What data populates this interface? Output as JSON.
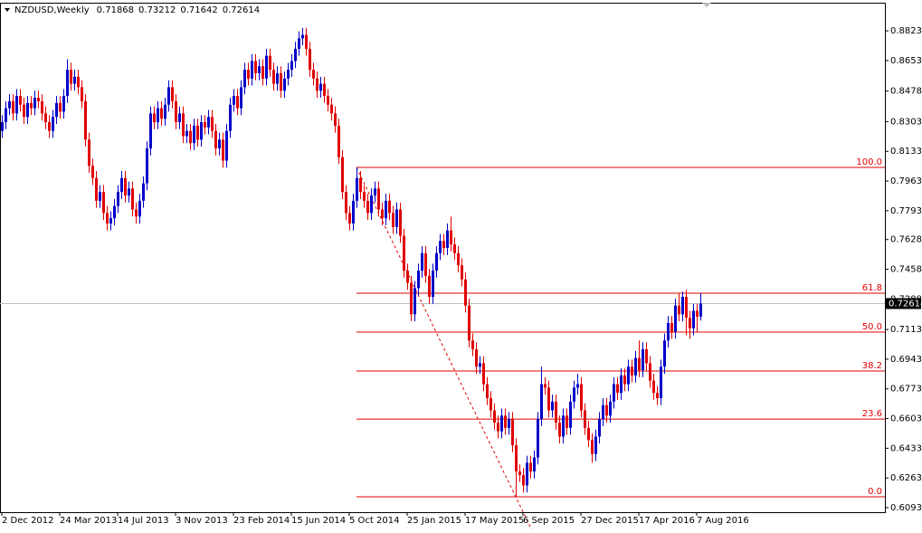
{
  "chart_data": {
    "type": "candlestick",
    "header": {
      "symbol": "NZDUSD,Weekly",
      "ohlc_labels": [
        "0.71868",
        "0.73212",
        "0.71642",
        "0.72614"
      ]
    },
    "up_color": "#0000c8",
    "down_color": "#e00000",
    "xlim": [
      -0.5,
      244
    ],
    "ylim": [
      0.6067,
      0.8984
    ],
    "xticks": [
      {
        "value": 0,
        "label": "2 Dec 2012"
      },
      {
        "value": 16,
        "label": "24 Mar 2013"
      },
      {
        "value": 32,
        "label": "14 Jul 2013"
      },
      {
        "value": 48,
        "label": "3 Nov 2013"
      },
      {
        "value": 64,
        "label": "23 Feb 2014"
      },
      {
        "value": 80,
        "label": "15 Jun 2014"
      },
      {
        "value": 96,
        "label": "5 Oct 2014"
      },
      {
        "value": 112,
        "label": "25 Jan 2015"
      },
      {
        "value": 128,
        "label": "17 May 2015"
      },
      {
        "value": 144,
        "label": "6 Sep 2015"
      },
      {
        "value": 160,
        "label": "27 Dec 2015"
      },
      {
        "value": 176,
        "label": "17 Apr 2016"
      },
      {
        "value": 192,
        "label": "7 Aug 2016"
      }
    ],
    "yticks": [
      {
        "value": 0.8823,
        "label": "0.88230"
      },
      {
        "value": 0.8653,
        "label": "0.86530"
      },
      {
        "value": 0.8478,
        "label": "0.84780"
      },
      {
        "value": 0.8303,
        "label": "0.83030"
      },
      {
        "value": 0.8133,
        "label": "0.81330"
      },
      {
        "value": 0.7963,
        "label": "0.79630"
      },
      {
        "value": 0.7793,
        "label": "0.77930"
      },
      {
        "value": 0.7628,
        "label": "0.76280"
      },
      {
        "value": 0.7458,
        "label": "0.74580"
      },
      {
        "value": 0.7288,
        "label": "0.72880"
      },
      {
        "value": 0.7113,
        "label": "0.71130"
      },
      {
        "value": 0.6943,
        "label": "0.69430"
      },
      {
        "value": 0.6773,
        "label": "0.67730"
      },
      {
        "value": 0.6603,
        "label": "0.66030"
      },
      {
        "value": 0.6433,
        "label": "0.64330"
      },
      {
        "value": 0.6263,
        "label": "0.62630"
      },
      {
        "value": 0.6093,
        "label": "0.60930"
      }
    ],
    "last_price": {
      "value": 0.72614,
      "label": "0.72614"
    },
    "fibonacci": {
      "high": 0.8041,
      "low": 0.6155,
      "start_index": 98,
      "end_index": 149,
      "color": "#e00000",
      "levels": [
        {
          "value": 100,
          "label": "100.0"
        },
        {
          "value": 61.8,
          "label": "61.8"
        },
        {
          "value": 50,
          "label": "50.0"
        },
        {
          "value": 38.2,
          "label": "38.2"
        },
        {
          "value": 23.6,
          "label": "23.6"
        },
        {
          "value": 0,
          "label": "0.0"
        }
      ]
    },
    "ohlc": [
      [
        0.825,
        0.834,
        0.821,
        0.83
      ],
      [
        0.83,
        0.842,
        0.826,
        0.838
      ],
      [
        0.838,
        0.846,
        0.834,
        0.842
      ],
      [
        0.842,
        0.846,
        0.831,
        0.835
      ],
      [
        0.835,
        0.849,
        0.831,
        0.845
      ],
      [
        0.845,
        0.849,
        0.836,
        0.84
      ],
      [
        0.84,
        0.844,
        0.829,
        0.833
      ],
      [
        0.833,
        0.845,
        0.829,
        0.841
      ],
      [
        0.841,
        0.845,
        0.834,
        0.838
      ],
      [
        0.838,
        0.848,
        0.834,
        0.844
      ],
      [
        0.844,
        0.848,
        0.838,
        0.842
      ],
      [
        0.842,
        0.846,
        0.831,
        0.835
      ],
      [
        0.835,
        0.839,
        0.826,
        0.83
      ],
      [
        0.83,
        0.834,
        0.821,
        0.825
      ],
      [
        0.825,
        0.837,
        0.821,
        0.833
      ],
      [
        0.833,
        0.845,
        0.829,
        0.841
      ],
      [
        0.841,
        0.845,
        0.832,
        0.836
      ],
      [
        0.836,
        0.849,
        0.832,
        0.845
      ],
      [
        0.845,
        0.866,
        0.841,
        0.86
      ],
      [
        0.86,
        0.864,
        0.848,
        0.852
      ],
      [
        0.852,
        0.86,
        0.848,
        0.856
      ],
      [
        0.856,
        0.86,
        0.846,
        0.85
      ],
      [
        0.85,
        0.854,
        0.838,
        0.842
      ],
      [
        0.842,
        0.846,
        0.816,
        0.82
      ],
      [
        0.82,
        0.824,
        0.801,
        0.805
      ],
      [
        0.805,
        0.809,
        0.794,
        0.798
      ],
      [
        0.798,
        0.802,
        0.781,
        0.785
      ],
      [
        0.785,
        0.794,
        0.781,
        0.79
      ],
      [
        0.79,
        0.794,
        0.774,
        0.778
      ],
      [
        0.778,
        0.782,
        0.768,
        0.772
      ],
      [
        0.772,
        0.779,
        0.768,
        0.775
      ],
      [
        0.775,
        0.786,
        0.771,
        0.782
      ],
      [
        0.782,
        0.794,
        0.778,
        0.79
      ],
      [
        0.79,
        0.802,
        0.786,
        0.798
      ],
      [
        0.798,
        0.802,
        0.784,
        0.788
      ],
      [
        0.788,
        0.796,
        0.784,
        0.792
      ],
      [
        0.792,
        0.796,
        0.776,
        0.78
      ],
      [
        0.78,
        0.784,
        0.772,
        0.776
      ],
      [
        0.776,
        0.789,
        0.772,
        0.785
      ],
      [
        0.785,
        0.799,
        0.781,
        0.795
      ],
      [
        0.795,
        0.819,
        0.791,
        0.815
      ],
      [
        0.815,
        0.839,
        0.811,
        0.835
      ],
      [
        0.835,
        0.839,
        0.826,
        0.83
      ],
      [
        0.83,
        0.842,
        0.826,
        0.838
      ],
      [
        0.838,
        0.842,
        0.828,
        0.832
      ],
      [
        0.832,
        0.844,
        0.828,
        0.84
      ],
      [
        0.84,
        0.854,
        0.836,
        0.85
      ],
      [
        0.85,
        0.854,
        0.838,
        0.842
      ],
      [
        0.842,
        0.846,
        0.826,
        0.83
      ],
      [
        0.83,
        0.839,
        0.826,
        0.835
      ],
      [
        0.835,
        0.839,
        0.818,
        0.822
      ],
      [
        0.822,
        0.829,
        0.818,
        0.825
      ],
      [
        0.825,
        0.829,
        0.814,
        0.818
      ],
      [
        0.818,
        0.832,
        0.814,
        0.828
      ],
      [
        0.828,
        0.832,
        0.816,
        0.82
      ],
      [
        0.82,
        0.834,
        0.816,
        0.83
      ],
      [
        0.83,
        0.834,
        0.823,
        0.827
      ],
      [
        0.827,
        0.837,
        0.823,
        0.833
      ],
      [
        0.833,
        0.837,
        0.821,
        0.825
      ],
      [
        0.825,
        0.829,
        0.811,
        0.815
      ],
      [
        0.815,
        0.824,
        0.811,
        0.82
      ],
      [
        0.82,
        0.824,
        0.804,
        0.808
      ],
      [
        0.808,
        0.829,
        0.804,
        0.825
      ],
      [
        0.825,
        0.844,
        0.821,
        0.84
      ],
      [
        0.84,
        0.849,
        0.836,
        0.845
      ],
      [
        0.845,
        0.849,
        0.834,
        0.838
      ],
      [
        0.838,
        0.854,
        0.834,
        0.85
      ],
      [
        0.85,
        0.864,
        0.846,
        0.86
      ],
      [
        0.86,
        0.864,
        0.851,
        0.855
      ],
      [
        0.855,
        0.869,
        0.851,
        0.865
      ],
      [
        0.865,
        0.869,
        0.854,
        0.858
      ],
      [
        0.858,
        0.866,
        0.854,
        0.862
      ],
      [
        0.862,
        0.866,
        0.851,
        0.855
      ],
      [
        0.855,
        0.872,
        0.851,
        0.868
      ],
      [
        0.868,
        0.872,
        0.856,
        0.86
      ],
      [
        0.86,
        0.864,
        0.848,
        0.852
      ],
      [
        0.852,
        0.862,
        0.848,
        0.858
      ],
      [
        0.858,
        0.862,
        0.844,
        0.848
      ],
      [
        0.848,
        0.859,
        0.844,
        0.855
      ],
      [
        0.855,
        0.864,
        0.851,
        0.86
      ],
      [
        0.86,
        0.869,
        0.856,
        0.865
      ],
      [
        0.865,
        0.876,
        0.861,
        0.872
      ],
      [
        0.872,
        0.882,
        0.868,
        0.878
      ],
      [
        0.878,
        0.884,
        0.874,
        0.88
      ],
      [
        0.88,
        0.884,
        0.868,
        0.872
      ],
      [
        0.872,
        0.876,
        0.856,
        0.86
      ],
      [
        0.86,
        0.864,
        0.851,
        0.855
      ],
      [
        0.855,
        0.859,
        0.844,
        0.848
      ],
      [
        0.848,
        0.856,
        0.844,
        0.852
      ],
      [
        0.852,
        0.856,
        0.841,
        0.845
      ],
      [
        0.845,
        0.849,
        0.836,
        0.84
      ],
      [
        0.84,
        0.844,
        0.831,
        0.835
      ],
      [
        0.835,
        0.839,
        0.824,
        0.828
      ],
      [
        0.828,
        0.832,
        0.806,
        0.81
      ],
      [
        0.81,
        0.814,
        0.786,
        0.79
      ],
      [
        0.79,
        0.794,
        0.774,
        0.778
      ],
      [
        0.778,
        0.782,
        0.768,
        0.772
      ],
      [
        0.772,
        0.789,
        0.768,
        0.785
      ],
      [
        0.785,
        0.8041,
        0.781,
        0.798
      ],
      [
        0.798,
        0.802,
        0.786,
        0.79
      ],
      [
        0.79,
        0.794,
        0.781,
        0.785
      ],
      [
        0.785,
        0.789,
        0.774,
        0.778
      ],
      [
        0.778,
        0.792,
        0.774,
        0.788
      ],
      [
        0.788,
        0.796,
        0.784,
        0.792
      ],
      [
        0.792,
        0.796,
        0.776,
        0.78
      ],
      [
        0.78,
        0.784,
        0.771,
        0.775
      ],
      [
        0.775,
        0.789,
        0.771,
        0.785
      ],
      [
        0.785,
        0.789,
        0.774,
        0.778
      ],
      [
        0.778,
        0.782,
        0.766,
        0.77
      ],
      [
        0.77,
        0.784,
        0.766,
        0.78
      ],
      [
        0.78,
        0.784,
        0.761,
        0.765
      ],
      [
        0.765,
        0.769,
        0.741,
        0.745
      ],
      [
        0.745,
        0.749,
        0.734,
        0.738
      ],
      [
        0.738,
        0.742,
        0.716,
        0.72
      ],
      [
        0.72,
        0.739,
        0.716,
        0.735
      ],
      [
        0.735,
        0.749,
        0.731,
        0.745
      ],
      [
        0.745,
        0.759,
        0.741,
        0.755
      ],
      [
        0.755,
        0.759,
        0.738,
        0.742
      ],
      [
        0.742,
        0.746,
        0.726,
        0.73
      ],
      [
        0.73,
        0.749,
        0.726,
        0.745
      ],
      [
        0.745,
        0.759,
        0.741,
        0.755
      ],
      [
        0.755,
        0.766,
        0.751,
        0.762
      ],
      [
        0.762,
        0.766,
        0.754,
        0.758
      ],
      [
        0.758,
        0.772,
        0.754,
        0.768
      ],
      [
        0.768,
        0.776,
        0.756,
        0.76
      ],
      [
        0.76,
        0.764,
        0.751,
        0.755
      ],
      [
        0.755,
        0.759,
        0.744,
        0.748
      ],
      [
        0.748,
        0.752,
        0.736,
        0.74
      ],
      [
        0.74,
        0.744,
        0.721,
        0.725
      ],
      [
        0.725,
        0.729,
        0.701,
        0.705
      ],
      [
        0.705,
        0.709,
        0.696,
        0.7
      ],
      [
        0.7,
        0.704,
        0.686,
        0.69
      ],
      [
        0.69,
        0.696,
        0.686,
        0.692
      ],
      [
        0.692,
        0.696,
        0.676,
        0.68
      ],
      [
        0.68,
        0.684,
        0.668,
        0.672
      ],
      [
        0.672,
        0.676,
        0.661,
        0.665
      ],
      [
        0.665,
        0.669,
        0.654,
        0.658
      ],
      [
        0.658,
        0.662,
        0.649,
        0.653
      ],
      [
        0.653,
        0.666,
        0.649,
        0.662
      ],
      [
        0.662,
        0.666,
        0.651,
        0.655
      ],
      [
        0.655,
        0.664,
        0.651,
        0.66
      ],
      [
        0.66,
        0.664,
        0.641,
        0.645
      ],
      [
        0.645,
        0.649,
        0.6155,
        0.63
      ],
      [
        0.63,
        0.634,
        0.624,
        0.628
      ],
      [
        0.628,
        0.632,
        0.618,
        0.622
      ],
      [
        0.622,
        0.639,
        0.618,
        0.635
      ],
      [
        0.635,
        0.639,
        0.626,
        0.63
      ],
      [
        0.63,
        0.642,
        0.626,
        0.638
      ],
      [
        0.638,
        0.664,
        0.634,
        0.66
      ],
      [
        0.66,
        0.69,
        0.656,
        0.68
      ],
      [
        0.68,
        0.684,
        0.674,
        0.678
      ],
      [
        0.678,
        0.682,
        0.661,
        0.665
      ],
      [
        0.665,
        0.674,
        0.661,
        0.67
      ],
      [
        0.67,
        0.674,
        0.654,
        0.658
      ],
      [
        0.658,
        0.662,
        0.646,
        0.65
      ],
      [
        0.65,
        0.666,
        0.646,
        0.662
      ],
      [
        0.662,
        0.666,
        0.651,
        0.655
      ],
      [
        0.655,
        0.674,
        0.651,
        0.67
      ],
      [
        0.67,
        0.682,
        0.666,
        0.678
      ],
      [
        0.678,
        0.686,
        0.674,
        0.68
      ],
      [
        0.68,
        0.684,
        0.661,
        0.665
      ],
      [
        0.665,
        0.669,
        0.651,
        0.655
      ],
      [
        0.655,
        0.659,
        0.644,
        0.648
      ],
      [
        0.648,
        0.652,
        0.635,
        0.64
      ],
      [
        0.64,
        0.654,
        0.636,
        0.65
      ],
      [
        0.65,
        0.664,
        0.646,
        0.66
      ],
      [
        0.66,
        0.672,
        0.656,
        0.668
      ],
      [
        0.668,
        0.672,
        0.658,
        0.662
      ],
      [
        0.662,
        0.674,
        0.658,
        0.67
      ],
      [
        0.67,
        0.684,
        0.666,
        0.68
      ],
      [
        0.68,
        0.684,
        0.671,
        0.675
      ],
      [
        0.675,
        0.689,
        0.671,
        0.685
      ],
      [
        0.685,
        0.689,
        0.676,
        0.68
      ],
      [
        0.68,
        0.694,
        0.676,
        0.69
      ],
      [
        0.69,
        0.694,
        0.681,
        0.685
      ],
      [
        0.685,
        0.699,
        0.681,
        0.695
      ],
      [
        0.695,
        0.705,
        0.684,
        0.688
      ],
      [
        0.688,
        0.704,
        0.684,
        0.7
      ],
      [
        0.7,
        0.704,
        0.688,
        0.692
      ],
      [
        0.692,
        0.696,
        0.678,
        0.682
      ],
      [
        0.682,
        0.686,
        0.671,
        0.675
      ],
      [
        0.675,
        0.679,
        0.668,
        0.672
      ],
      [
        0.672,
        0.694,
        0.668,
        0.69
      ],
      [
        0.69,
        0.709,
        0.686,
        0.705
      ],
      [
        0.705,
        0.719,
        0.701,
        0.715
      ],
      [
        0.715,
        0.719,
        0.706,
        0.71
      ],
      [
        0.71,
        0.729,
        0.706,
        0.725
      ],
      [
        0.725,
        0.732,
        0.716,
        0.72
      ],
      [
        0.72,
        0.733,
        0.716,
        0.73
      ],
      [
        0.73,
        0.734,
        0.708,
        0.718
      ],
      [
        0.718,
        0.722,
        0.706,
        0.712
      ],
      [
        0.712,
        0.726,
        0.708,
        0.722
      ],
      [
        0.722,
        0.726,
        0.71,
        0.7187
      ],
      [
        0.71868,
        0.73212,
        0.71642,
        0.72614
      ]
    ]
  }
}
